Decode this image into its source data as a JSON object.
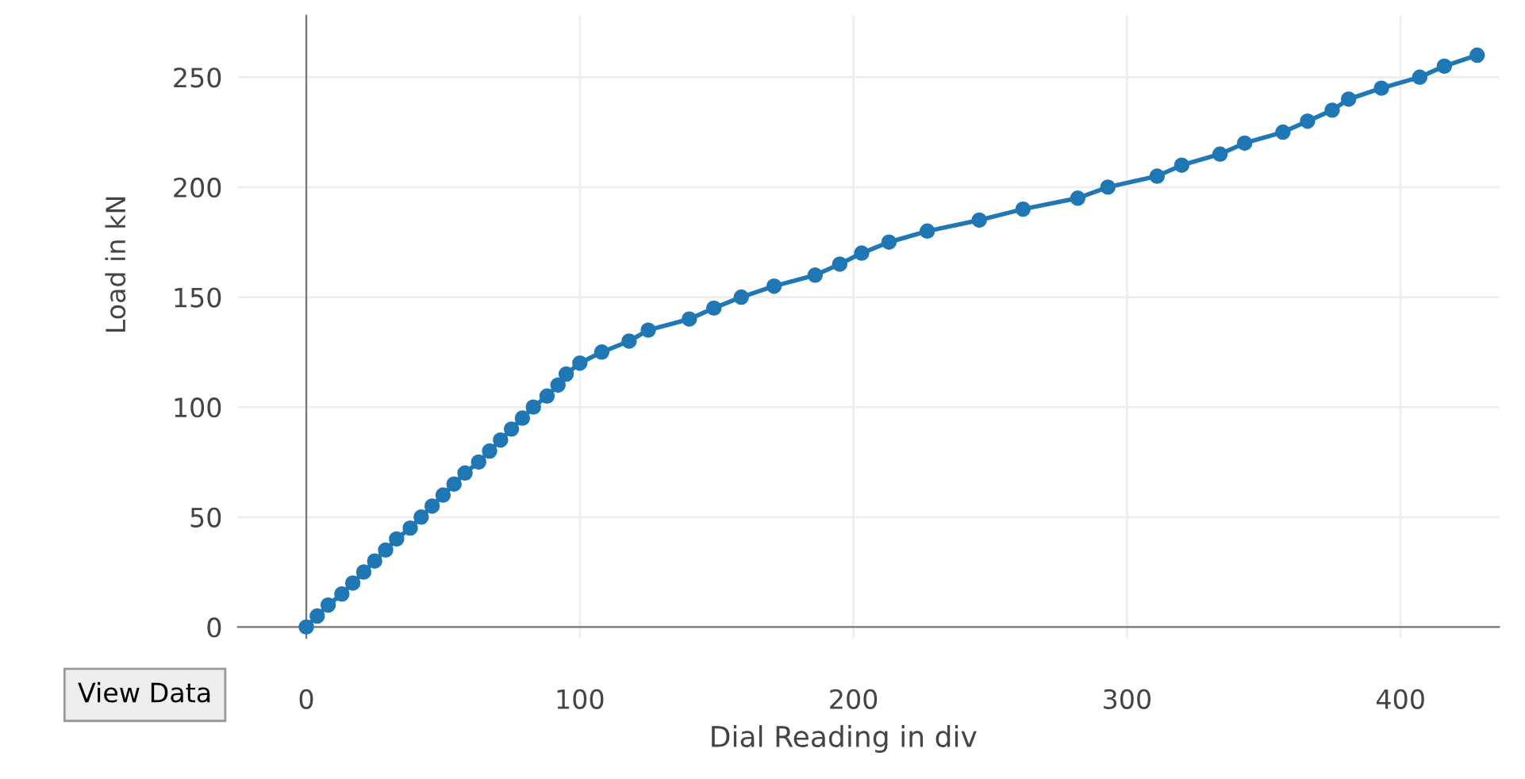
{
  "chart_data": {
    "type": "line",
    "xlabel": "Dial Reading in div",
    "ylabel": "Load in kN",
    "x": [
      0,
      4,
      8,
      13,
      17,
      21,
      25,
      29,
      33,
      38,
      42,
      46,
      50,
      54,
      58,
      63,
      67,
      71,
      75,
      79,
      83,
      88,
      92,
      95,
      100,
      108,
      118,
      125,
      140,
      149,
      159,
      171,
      186,
      195,
      203,
      213,
      227,
      246,
      262,
      282,
      293,
      311,
      320,
      334,
      343,
      357,
      366,
      375,
      381,
      393,
      407,
      416,
      428
    ],
    "series": [
      {
        "color": "#1f77b4",
        "values": [
          0,
          5,
          10,
          15,
          20,
          25,
          30,
          35,
          40,
          45,
          50,
          55,
          60,
          65,
          70,
          75,
          80,
          85,
          90,
          95,
          100,
          105,
          110,
          115,
          120,
          125,
          130,
          135,
          140,
          145,
          150,
          155,
          160,
          165,
          170,
          175,
          180,
          185,
          190,
          195,
          200,
          205,
          210,
          215,
          220,
          225,
          230,
          235,
          240,
          245,
          250,
          255,
          260
        ]
      }
    ],
    "xlim": [
      -25,
      436
    ],
    "ylim": [
      -5,
      278
    ],
    "xticks": [
      0,
      100,
      200,
      300,
      400
    ],
    "yticks": [
      0,
      50,
      100,
      150,
      200,
      250
    ],
    "grid": true,
    "marker": "circle",
    "line_style": "solid",
    "legend": false,
    "annotations": [
      "View Data"
    ]
  }
}
